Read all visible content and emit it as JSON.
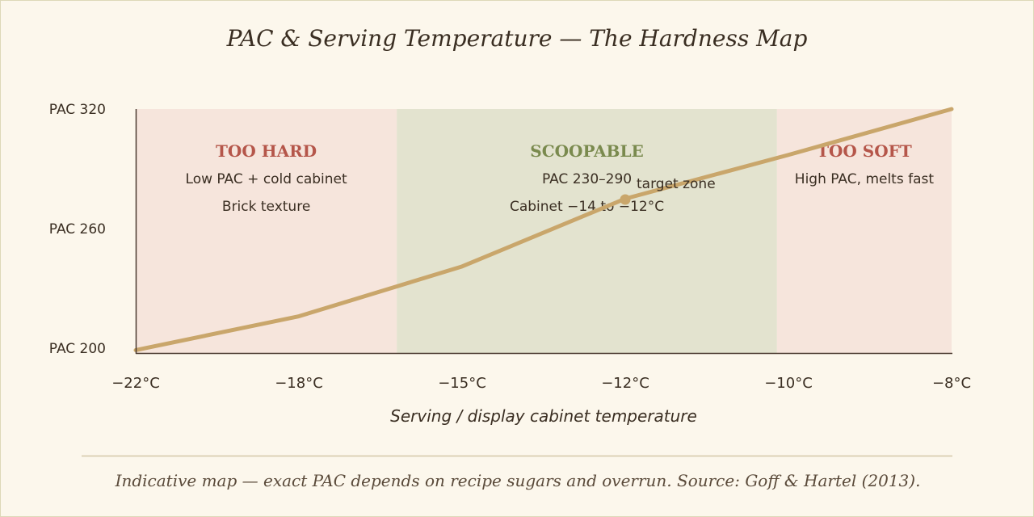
{
  "colors": {
    "background": "#fcf7ec",
    "zone_hard_soft": "#f6e5dc",
    "zone_scoopable": "#e3e3cf",
    "curve": "#c9a66b",
    "hard_soft_title": "#b5564a",
    "scoopable_title": "#7a8a4e",
    "text": "#3a2e22",
    "axis": "#4a3a30",
    "footnote": "#5a4a3a",
    "rule": "#d4c8a8"
  },
  "chart_data": {
    "type": "line",
    "title": "PAC & Serving Temperature — The Hardness Map",
    "xlabel": "Serving / display cabinet temperature",
    "ylabel": "",
    "x_categories": [
      "−22°C",
      "−18°C",
      "−15°C",
      "−12°C",
      "−10°C",
      "−8°C"
    ],
    "y_ticks": [
      {
        "label": "PAC 200",
        "value": 200
      },
      {
        "label": "PAC 260",
        "value": 260
      },
      {
        "label": "PAC 320",
        "value": 320
      }
    ],
    "ylim": [
      200,
      320
    ],
    "series": [
      {
        "values": [
          199,
          216,
          241,
          275,
          297,
          320
        ]
      }
    ],
    "zones": [
      {
        "from": 0,
        "to": 1.6,
        "kind": "hard_soft",
        "title": "TOO HARD",
        "lines": [
          "Low PAC + cold cabinet",
          "Brick texture"
        ]
      },
      {
        "from": 1.6,
        "to": 3.93,
        "kind": "scoopable",
        "title": "SCOOPABLE",
        "lines": [
          "PAC 230–290",
          "Cabinet −14 to −12°C"
        ]
      },
      {
        "from": 3.93,
        "to": 5,
        "kind": "hard_soft",
        "title": "TOO SOFT",
        "lines": [
          "High PAC, melts fast"
        ]
      }
    ],
    "annotation": {
      "x_index": 3,
      "value": 275,
      "text": "target zone"
    },
    "grid": false,
    "legend": "none"
  },
  "footnote": "Indicative map — exact PAC depends on recipe sugars and overrun. Source: Goff & Hartel (2013)."
}
